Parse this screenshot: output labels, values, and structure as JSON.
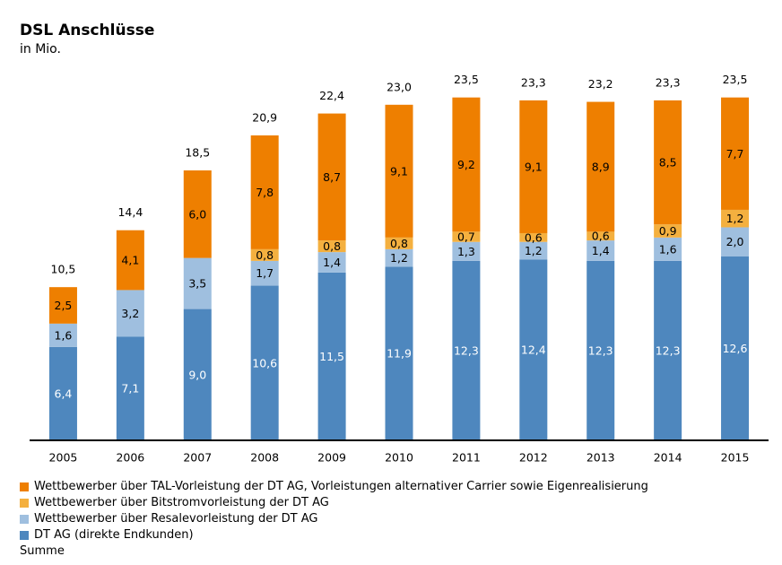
{
  "chart_data": {
    "type": "bar",
    "stacked": true,
    "title": "DSL Anschlüsse",
    "subtitle": "in Mio.",
    "categories": [
      "2005",
      "2006",
      "2007",
      "2008",
      "2009",
      "2010",
      "2011",
      "2012",
      "2013",
      "2014",
      "2015"
    ],
    "series": [
      {
        "name": "DT AG (direkte Endkunden)",
        "color": "#4e87be",
        "values": [
          6.4,
          7.1,
          9.0,
          10.6,
          11.5,
          11.9,
          12.3,
          12.4,
          12.3,
          12.3,
          12.6
        ]
      },
      {
        "name": "Wettbewerber über Resalevorleistung der DT AG",
        "color": "#9fbfdf",
        "values": [
          1.6,
          3.2,
          3.5,
          1.7,
          1.4,
          1.2,
          1.3,
          1.2,
          1.4,
          1.6,
          2.0
        ]
      },
      {
        "name": "Wettbewerber über Bitstromvorleistung der DT AG",
        "color": "#f4b03f",
        "values": [
          null,
          null,
          null,
          0.8,
          0.8,
          0.8,
          0.7,
          0.6,
          0.6,
          0.9,
          1.2
        ]
      },
      {
        "name": "Wettbewerber über TAL-Vorleistung der DT AG, Vorleistungen alternativer Carrier sowie Eigenrealisierung",
        "color": "#ee7f00",
        "values": [
          2.5,
          4.1,
          6.0,
          7.8,
          8.7,
          9.1,
          9.2,
          9.1,
          8.9,
          8.5,
          7.7
        ]
      }
    ],
    "totals_label": "Summe",
    "totals": [
      10.5,
      14.4,
      18.5,
      20.9,
      22.4,
      23.0,
      23.5,
      23.3,
      23.2,
      23.3,
      23.5
    ],
    "ylim": [
      0,
      26
    ],
    "grid": false,
    "legend_position": "bottom"
  },
  "legend": [
    {
      "label": "Wettbewerber über TAL-Vorleistung der DT AG, Vorleistungen alternativer Carrier sowie Eigenrealisierung",
      "color": "#ee7f00"
    },
    {
      "label": "Wettbewerber über Bitstromvorleistung der DT AG",
      "color": "#f4b03f"
    },
    {
      "label": "Wettbewerber über Resalevorleistung der DT AG",
      "color": "#9fbfdf"
    },
    {
      "label": "DT AG (direkte Endkunden)",
      "color": "#4e87be"
    },
    {
      "label": "Summe",
      "color": ""
    }
  ]
}
